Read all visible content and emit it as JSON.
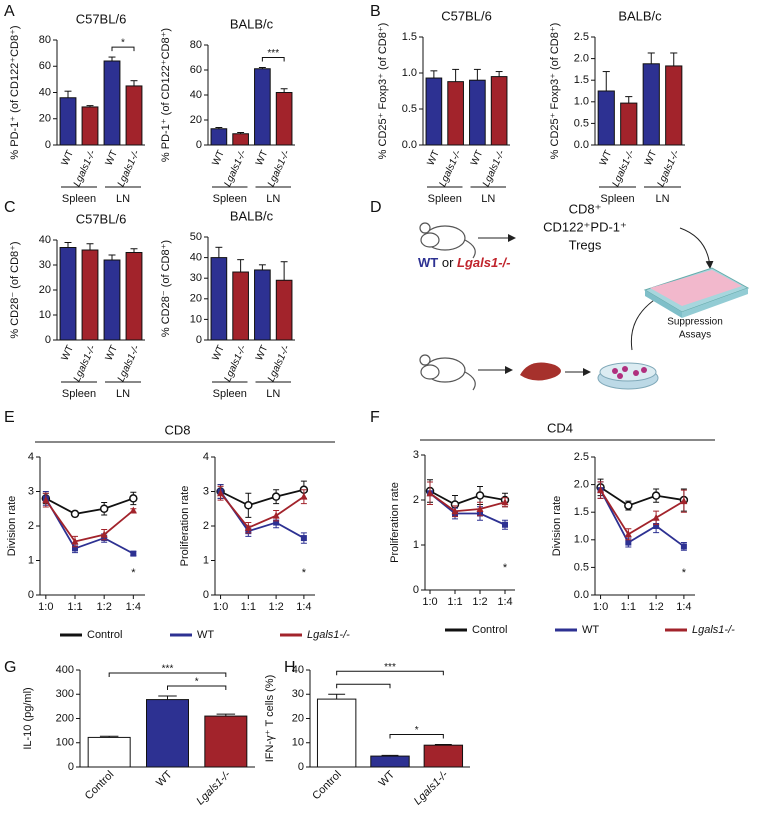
{
  "panels": [
    "A",
    "B",
    "C",
    "D",
    "E",
    "F",
    "G",
    "H"
  ],
  "diagram": {
    "line1": "CD8⁺",
    "line2": "CD122⁺PD-1⁺",
    "line3": "Tregs",
    "wt": "WT",
    "or": "or",
    "ko": "Lgals1-/-",
    "assay1": "Suppression",
    "assay2": "Assays"
  },
  "chart_data": [
    {
      "type": "bar",
      "title": "C57BL/6",
      "y_label": "% PD-1⁺ (of CD122⁺CD8⁺)",
      "categories": [
        "WT",
        "Lgals1-/-",
        "WT",
        "Lgals1-/-"
      ],
      "values": [
        36,
        29,
        64,
        45
      ],
      "errors": [
        5,
        1,
        3,
        4
      ],
      "colors": [
        "#2d3192",
        "#a2232b",
        "#2d3192",
        "#a2232b"
      ],
      "group_labels": [
        "Spleen",
        "LN"
      ],
      "ylim": [
        0,
        80
      ],
      "yticks": [
        0,
        20,
        40,
        60,
        80
      ],
      "significance": [
        {
          "from": 2,
          "to": 3,
          "label": "*"
        }
      ]
    },
    {
      "type": "bar",
      "title": "BALB/c",
      "y_label": "% PD-1⁺ (of CD122⁺CD8⁺)",
      "categories": [
        "WT",
        "Lgals1-/-",
        "WT",
        "Lgals1-/-"
      ],
      "values": [
        13,
        9,
        61,
        42
      ],
      "errors": [
        1,
        1,
        1,
        3
      ],
      "colors": [
        "#2d3192",
        "#a2232b",
        "#2d3192",
        "#a2232b"
      ],
      "group_labels": [
        "Spleen",
        "LN"
      ],
      "ylim": [
        0,
        80
      ],
      "yticks": [
        0,
        20,
        40,
        60,
        80
      ],
      "significance": [
        {
          "from": 2,
          "to": 3,
          "label": "***"
        }
      ]
    },
    {
      "type": "bar",
      "title": "C57BL/6",
      "y_label": "% CD25⁺ Foxp3⁺ (of CD8⁺)",
      "categories": [
        "WT",
        "Lgals1-/-",
        "WT",
        "Lgals1-/-"
      ],
      "values": [
        0.93,
        0.88,
        0.9,
        0.95
      ],
      "errors": [
        0.1,
        0.17,
        0.15,
        0.07
      ],
      "colors": [
        "#2d3192",
        "#a2232b",
        "#2d3192",
        "#a2232b"
      ],
      "group_labels": [
        "Spleen",
        "LN"
      ],
      "ylim": [
        0,
        1.5
      ],
      "yticks": [
        {
          "value": 0,
          "label": "0.0"
        },
        0.5,
        {
          "value": 1,
          "label": "1.0"
        },
        1.5
      ]
    },
    {
      "type": "bar",
      "title": "BALB/c",
      "y_label": "% CD25⁺ Foxp3⁺ (of CD8⁺)",
      "categories": [
        "WT",
        "Lgals1-/-",
        "WT",
        "Lgals1-/-"
      ],
      "values": [
        1.25,
        0.97,
        1.88,
        1.83
      ],
      "errors": [
        0.45,
        0.15,
        0.25,
        0.3
      ],
      "colors": [
        "#2d3192",
        "#a2232b",
        "#2d3192",
        "#a2232b"
      ],
      "group_labels": [
        "Spleen",
        "LN"
      ],
      "ylim": [
        0,
        2.5
      ],
      "yticks": [
        {
          "value": 0,
          "label": "0.0"
        },
        0.5,
        {
          "value": 1,
          "label": "1.0"
        },
        1.5,
        {
          "value": 2,
          "label": "2.0"
        },
        2.5
      ]
    },
    {
      "type": "bar",
      "title": "C57BL/6",
      "y_label": "% CD28⁻ (of CD8⁺)",
      "categories": [
        "WT",
        "Lgals1-/-",
        "WT",
        "Lgals1-/-"
      ],
      "values": [
        37,
        36,
        32,
        35
      ],
      "errors": [
        2,
        2.5,
        2,
        1.5
      ],
      "colors": [
        "#2d3192",
        "#a2232b",
        "#2d3192",
        "#a2232b"
      ],
      "group_labels": [
        "Spleen",
        "LN"
      ],
      "ylim": [
        0,
        40
      ],
      "yticks": [
        0,
        10,
        20,
        30,
        40
      ]
    },
    {
      "type": "bar",
      "title": "BALB/c",
      "y_label": "% CD28⁻ (of CD8⁺)",
      "categories": [
        "WT",
        "Lgals1-/-",
        "WT",
        "Lgals1-/-"
      ],
      "values": [
        40,
        33,
        34,
        29
      ],
      "errors": [
        5,
        6,
        2.5,
        9
      ],
      "colors": [
        "#2d3192",
        "#a2232b",
        "#2d3192",
        "#a2232b"
      ],
      "group_labels": [
        "Spleen",
        "LN"
      ],
      "ylim": [
        0,
        50
      ],
      "yticks": [
        0,
        10,
        20,
        30,
        40,
        50
      ]
    },
    {
      "type": "line",
      "group_title": "CD8",
      "legend": true,
      "y_label": "Division rate",
      "categories": [
        "1:0",
        "1:1",
        "1:2",
        "1:4"
      ],
      "annotation": "*",
      "ylim": [
        0,
        4
      ],
      "yticks": [
        0,
        1,
        2,
        3,
        4
      ],
      "series": [
        {
          "name": "Control",
          "color": "#111111",
          "marker": "circle",
          "values": [
            2.8,
            2.35,
            2.5,
            2.8
          ],
          "errors": [
            0.15,
            0.08,
            0.18,
            0.18
          ]
        },
        {
          "name": "WT",
          "color": "#2d3192",
          "marker": "square",
          "values": [
            2.8,
            1.35,
            1.65,
            1.2
          ],
          "errors": [
            0.2,
            0.12,
            0.12,
            0.06
          ]
        },
        {
          "name": "Lgals1-/-",
          "color": "#a2232b",
          "marker": "triangle",
          "values": [
            2.75,
            1.55,
            1.75,
            2.45
          ],
          "errors": [
            0.2,
            0.15,
            0.15,
            0.05
          ]
        }
      ]
    },
    {
      "type": "line",
      "y_label": "Proliferation rate",
      "categories": [
        "1:0",
        "1:1",
        "1:2",
        "1:4"
      ],
      "annotation": "*",
      "ylim": [
        0,
        4
      ],
      "yticks": [
        0,
        1,
        2,
        3,
        4
      ],
      "series": [
        {
          "name": "Control",
          "color": "#111111",
          "marker": "circle",
          "values": [
            3,
            2.6,
            2.85,
            3.05
          ],
          "errors": [
            0.2,
            0.35,
            0.2,
            0.25
          ]
        },
        {
          "name": "WT",
          "color": "#2d3192",
          "marker": "square",
          "values": [
            3,
            1.85,
            2.1,
            1.65
          ],
          "errors": [
            0.2,
            0.15,
            0.15,
            0.15
          ]
        },
        {
          "name": "Lgals1-/-",
          "color": "#a2232b",
          "marker": "triangle",
          "values": [
            2.95,
            1.95,
            2.3,
            2.85
          ],
          "errors": [
            0.2,
            0.15,
            0.15,
            0.2
          ]
        }
      ]
    },
    {
      "type": "line",
      "group_title": "CD4",
      "legend": true,
      "y_label": "Proliferation rate",
      "categories": [
        "1:0",
        "1:1",
        "1:2",
        "1:4"
      ],
      "annotation": "*",
      "ylim": [
        0,
        3
      ],
      "yticks": [
        0,
        1,
        2,
        3
      ],
      "series": [
        {
          "name": "Control",
          "color": "#111111",
          "marker": "circle",
          "values": [
            2.2,
            1.9,
            2.1,
            2.0
          ],
          "errors": [
            0.25,
            0.2,
            0.2,
            0.15
          ]
        },
        {
          "name": "WT",
          "color": "#2d3192",
          "marker": "square",
          "values": [
            2.15,
            1.7,
            1.7,
            1.45
          ],
          "errors": [
            0.25,
            0.12,
            0.15,
            0.1
          ]
        },
        {
          "name": "Lgals1-/-",
          "color": "#a2232b",
          "marker": "triangle",
          "values": [
            2.15,
            1.75,
            1.8,
            1.95
          ],
          "errors": [
            0.25,
            0.12,
            0.15,
            0.1
          ]
        }
      ]
    },
    {
      "type": "line",
      "y_label": "Division rate",
      "categories": [
        "1:0",
        "1:1",
        "1:2",
        "1:4"
      ],
      "annotation": "*",
      "ylim": [
        0,
        2.5
      ],
      "yticks": [
        {
          "value": 0,
          "label": "0.0"
        },
        0.5,
        {
          "value": 1,
          "label": "1.0"
        },
        1.5,
        {
          "value": 2,
          "label": "2.0"
        },
        2.5
      ],
      "series": [
        {
          "name": "Control",
          "color": "#111111",
          "marker": "circle",
          "values": [
            1.95,
            1.62,
            1.8,
            1.72
          ],
          "errors": [
            0.15,
            0.08,
            0.12,
            0.2
          ]
        },
        {
          "name": "WT",
          "color": "#2d3192",
          "marker": "square",
          "values": [
            1.9,
            0.95,
            1.25,
            0.88
          ],
          "errors": [
            0.15,
            0.08,
            0.12,
            0.07
          ]
        },
        {
          "name": "Lgals1-/-",
          "color": "#a2232b",
          "marker": "triangle",
          "values": [
            1.9,
            1.1,
            1.4,
            1.7
          ],
          "errors": [
            0.15,
            0.1,
            0.12,
            0.2
          ]
        }
      ]
    },
    {
      "type": "bar",
      "y_label": "IL-10 (pg/ml)",
      "categories": [
        "Control",
        "WT",
        "Lgals1-/-"
      ],
      "values": [
        122,
        278,
        210
      ],
      "errors": [
        5,
        15,
        8
      ],
      "colors": [
        "#ffffff",
        "#2d3192",
        "#a2232b"
      ],
      "ylim": [
        0,
        400
      ],
      "yticks": [
        0,
        100,
        200,
        300,
        400
      ],
      "significance": [
        {
          "from": 1,
          "to": 2,
          "label": "*"
        },
        {
          "from": 0,
          "to": 2,
          "label": "***"
        }
      ]
    },
    {
      "type": "bar",
      "y_label": "IFN-γ⁺ T cells (%)",
      "categories": [
        "Control",
        "WT",
        "Lgals1-/-"
      ],
      "values": [
        28,
        4.5,
        9
      ],
      "errors": [
        2,
        0.3,
        0.3
      ],
      "colors": [
        "#ffffff",
        "#2d3192",
        "#a2232b"
      ],
      "ylim": [
        0,
        40
      ],
      "yticks": [
        0,
        10,
        20,
        30,
        40
      ],
      "significance": [
        {
          "from": 0,
          "to": 1
        },
        {
          "from": 0,
          "to": 2,
          "label": "***"
        },
        {
          "from": 1,
          "to": 2,
          "label": "*"
        }
      ]
    }
  ]
}
